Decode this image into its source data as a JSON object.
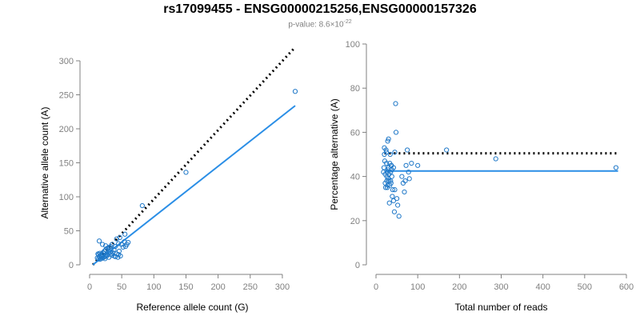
{
  "header": {
    "title": "rs17099455 - ENSG00000215256,ENSG00000157326",
    "subtitle_prefix": "p-value: 8.6×10",
    "subtitle_exponent": "-22"
  },
  "colors": {
    "points": "#1f78c8",
    "fit_line": "#2a8ee6",
    "reference_line": "#000000",
    "axis": "#808080"
  },
  "chart_data": [
    {
      "type": "scatter",
      "xlabel": "Reference allele count (G)",
      "ylabel": "Alternative allele count (A)",
      "xlim": [
        0,
        320
      ],
      "ylim": [
        0,
        300
      ],
      "xticks": [
        0,
        50,
        100,
        150,
        200,
        250,
        300
      ],
      "yticks": [
        0,
        50,
        100,
        150,
        200,
        250,
        300
      ],
      "points": [
        [
          320,
          255
        ],
        [
          150,
          136
        ],
        [
          82,
          87
        ],
        [
          47,
          40
        ],
        [
          42,
          38
        ],
        [
          54,
          34
        ],
        [
          55,
          45
        ],
        [
          50,
          30
        ],
        [
          45,
          31
        ],
        [
          40,
          27
        ],
        [
          38,
          22
        ],
        [
          36,
          18
        ],
        [
          32,
          19
        ],
        [
          30,
          17
        ],
        [
          28,
          14
        ],
        [
          26,
          13
        ],
        [
          24,
          12
        ],
        [
          22,
          11
        ],
        [
          20,
          10
        ],
        [
          18,
          9
        ],
        [
          16,
          8
        ],
        [
          14,
          9
        ],
        [
          12,
          10
        ],
        [
          15,
          12
        ],
        [
          17,
          14
        ],
        [
          19,
          16
        ],
        [
          21,
          18
        ],
        [
          23,
          20
        ],
        [
          25,
          22
        ],
        [
          27,
          24
        ],
        [
          29,
          25
        ],
        [
          31,
          26
        ],
        [
          33,
          27
        ],
        [
          35,
          30
        ],
        [
          15,
          35
        ],
        [
          20,
          30
        ],
        [
          25,
          28
        ],
        [
          35,
          14
        ],
        [
          40,
          12
        ],
        [
          45,
          15
        ],
        [
          48,
          13
        ],
        [
          52,
          26
        ],
        [
          56,
          27
        ],
        [
          58,
          30
        ],
        [
          60,
          33
        ],
        [
          44,
          11
        ],
        [
          46,
          20
        ],
        [
          42,
          16
        ],
        [
          38,
          13
        ],
        [
          34,
          16
        ],
        [
          30,
          11
        ],
        [
          26,
          15
        ],
        [
          22,
          17
        ],
        [
          18,
          13
        ],
        [
          14,
          15
        ],
        [
          16,
          17
        ],
        [
          19,
          12
        ],
        [
          13,
          16
        ],
        [
          21,
          14
        ],
        [
          24,
          9
        ]
      ],
      "fit_line": [
        [
          5,
          0
        ],
        [
          320,
          234
        ]
      ],
      "reference_line": [
        [
          5,
          0
        ],
        [
          320,
          320
        ]
      ]
    },
    {
      "type": "scatter",
      "xlabel": "Total number of reads",
      "ylabel": "Percentage alternative (A)",
      "xlim": [
        0,
        600
      ],
      "ylim": [
        0,
        100
      ],
      "xticks": [
        0,
        100,
        200,
        300,
        400,
        500,
        600
      ],
      "yticks": [
        0,
        20,
        40,
        60,
        80,
        100
      ],
      "points": [
        [
          575,
          44
        ],
        [
          287,
          48
        ],
        [
          169,
          52
        ],
        [
          100,
          45
        ],
        [
          85,
          46
        ],
        [
          80,
          39
        ],
        [
          78,
          42
        ],
        [
          75,
          52
        ],
        [
          72,
          45
        ],
        [
          70,
          38
        ],
        [
          68,
          33
        ],
        [
          65,
          37
        ],
        [
          62,
          40
        ],
        [
          55,
          22
        ],
        [
          52,
          27
        ],
        [
          50,
          30
        ],
        [
          48,
          60
        ],
        [
          47,
          73
        ],
        [
          45,
          34
        ],
        [
          44,
          24
        ],
        [
          42,
          29
        ],
        [
          40,
          34
        ],
        [
          39,
          31
        ],
        [
          38,
          40
        ],
        [
          37,
          45
        ],
        [
          36,
          45
        ],
        [
          35,
          42
        ],
        [
          34,
          50
        ],
        [
          33,
          36
        ],
        [
          32,
          28
        ],
        [
          31,
          38
        ],
        [
          30,
          44
        ],
        [
          30,
          57
        ],
        [
          29,
          43
        ],
        [
          28,
          36
        ],
        [
          28,
          56
        ],
        [
          27,
          35
        ],
        [
          26,
          38
        ],
        [
          26,
          40
        ],
        [
          25,
          51
        ],
        [
          25,
          46
        ],
        [
          24,
          52
        ],
        [
          23,
          35
        ],
        [
          22,
          37
        ],
        [
          22,
          41
        ],
        [
          21,
          47
        ],
        [
          20,
          50
        ],
        [
          20,
          53
        ],
        [
          19,
          44
        ],
        [
          18,
          42
        ],
        [
          35,
          38
        ],
        [
          42,
          44
        ],
        [
          45,
          51
        ],
        [
          38,
          43
        ],
        [
          33,
          46
        ],
        [
          29,
          39
        ],
        [
          27,
          42
        ],
        [
          31,
          41
        ],
        [
          36,
          37
        ]
      ],
      "fit_line": [
        [
          20,
          42.5
        ],
        [
          580,
          42.5
        ]
      ],
      "reference_line": [
        [
          20,
          50.5
        ],
        [
          580,
          50.5
        ]
      ]
    }
  ]
}
